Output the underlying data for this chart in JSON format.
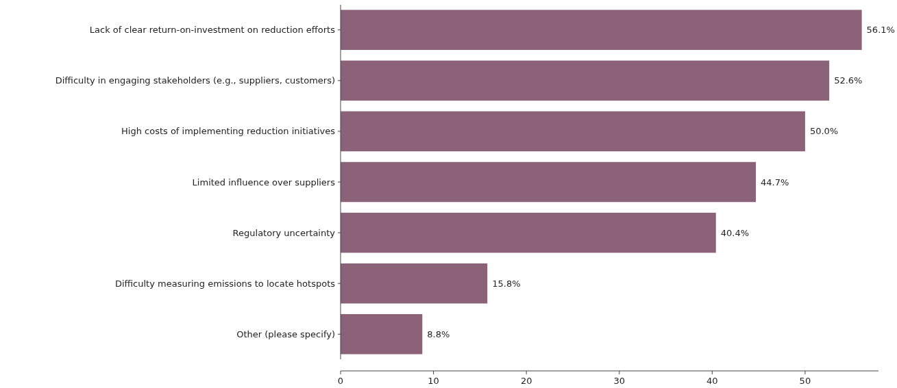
{
  "chart_data": {
    "type": "bar",
    "orientation": "horizontal",
    "categories": [
      "Lack of clear return-on-investment on reduction efforts",
      "Difficulty in engaging stakeholders (e.g., suppliers, customers)",
      "High costs of implementing reduction initiatives",
      "Limited influence over suppliers",
      "Regulatory uncertainty",
      "Difficulty measuring emissions to locate hotspots",
      "Other (please specify)"
    ],
    "values": [
      56.1,
      52.6,
      50.0,
      44.7,
      40.4,
      15.8,
      8.8
    ],
    "value_labels": [
      "56.1%",
      "52.6%",
      "50.0%",
      "44.7%",
      "40.4%",
      "15.8%",
      "8.8%"
    ],
    "color": "#8b6278",
    "xlim": [
      0,
      57.9
    ],
    "xticks": [
      0,
      10,
      20,
      30,
      40,
      50
    ],
    "grid": false
  }
}
